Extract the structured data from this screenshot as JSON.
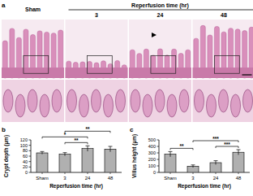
{
  "figure": {
    "panel_label": "a",
    "group_label": "Reperfusion time (hr)",
    "columns": [
      "Sham",
      "3",
      "24",
      "48"
    ]
  },
  "chart_data": [
    {
      "type": "bar",
      "panel_label": "b",
      "categories": [
        "Sham",
        "3",
        "24",
        "48"
      ],
      "values": [
        72,
        67,
        88,
        86
      ],
      "errors": [
        5,
        6,
        10,
        10
      ],
      "color": "#b0b0b0",
      "x_label": "Reperfusion time (hr)",
      "y_label": "Crypt depth (µm)",
      "ylim": [
        0,
        120
      ],
      "yticks": [
        0,
        20,
        40,
        60,
        80,
        100,
        120
      ],
      "annotations": [
        {
          "from": 1,
          "to": 2,
          "text": "**"
        },
        {
          "from": 0,
          "to": 2,
          "text": "*"
        },
        {
          "from": 1,
          "to": 3,
          "text": "**"
        }
      ]
    },
    {
      "type": "bar",
      "panel_label": "c",
      "categories": [
        "Sham",
        "3",
        "24",
        "48"
      ],
      "values": [
        280,
        95,
        150,
        310
      ],
      "errors": [
        40,
        20,
        30,
        40
      ],
      "color": "#b0b0b0",
      "x_label": "Reperfusion time (hr)",
      "y_label": "Villus height (µm)",
      "ylim": [
        0,
        500
      ],
      "yticks": [
        0,
        100,
        200,
        300,
        400,
        500
      ],
      "annotations": [
        {
          "from": 0,
          "to": 1,
          "text": "**"
        },
        {
          "from": 2,
          "to": 3,
          "text": "***"
        },
        {
          "from": 1,
          "to": 3,
          "text": "***"
        }
      ]
    }
  ]
}
